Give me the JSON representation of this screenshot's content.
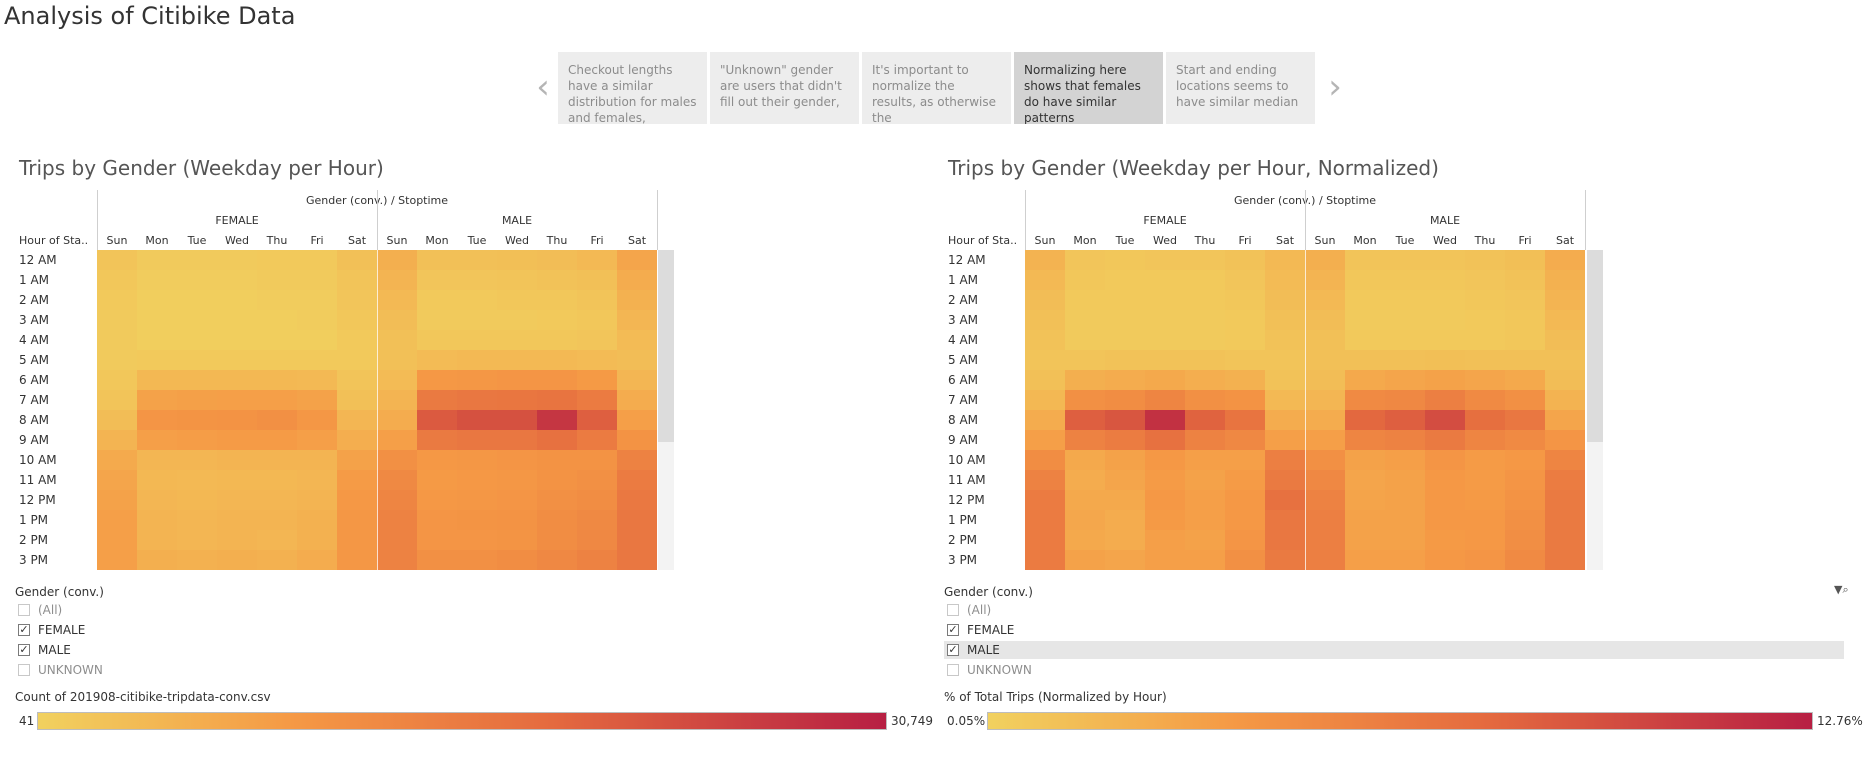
{
  "page_title": "Analysis of Citibike Data",
  "story": {
    "points": [
      {
        "text": "Checkout lengths have a similar distribution for males and females,",
        "active": false
      },
      {
        "text": "\"Unknown\" gender are users that didn't fill out their gender,",
        "active": false
      },
      {
        "text": "It's important to normalize the results, as otherwise the",
        "active": false
      },
      {
        "text": "Normalizing here shows that females do have similar patterns",
        "active": true
      },
      {
        "text": "Start and ending locations seems to have similar median",
        "active": false
      }
    ]
  },
  "views": [
    {
      "title": "Trips by Gender (Weekday per Hour)",
      "header_path": "Gender (conv.) / Stoptime",
      "row_header": "Hour of Sta..",
      "genders": [
        "FEMALE",
        "MALE"
      ],
      "days": [
        "Sun",
        "Mon",
        "Tue",
        "Wed",
        "Thu",
        "Fri",
        "Sat"
      ],
      "hours": [
        "12 AM",
        "1 AM",
        "2 AM",
        "3 AM",
        "4 AM",
        "5 AM",
        "6 AM",
        "7 AM",
        "8 AM",
        "9 AM",
        "10 AM",
        "11 AM",
        "12 PM",
        "1 PM",
        "2 PM",
        "3 PM"
      ],
      "matrix_female": [
        [
          0.08,
          0.04,
          0.04,
          0.04,
          0.05,
          0.05,
          0.1
        ],
        [
          0.06,
          0.03,
          0.03,
          0.03,
          0.04,
          0.04,
          0.08
        ],
        [
          0.05,
          0.02,
          0.02,
          0.02,
          0.03,
          0.03,
          0.07
        ],
        [
          0.04,
          0.02,
          0.02,
          0.02,
          0.02,
          0.03,
          0.06
        ],
        [
          0.04,
          0.02,
          0.02,
          0.02,
          0.02,
          0.02,
          0.05
        ],
        [
          0.04,
          0.05,
          0.05,
          0.05,
          0.05,
          0.05,
          0.05
        ],
        [
          0.06,
          0.15,
          0.15,
          0.15,
          0.15,
          0.14,
          0.08
        ],
        [
          0.08,
          0.28,
          0.29,
          0.3,
          0.3,
          0.28,
          0.1
        ],
        [
          0.12,
          0.36,
          0.37,
          0.38,
          0.4,
          0.35,
          0.16
        ],
        [
          0.17,
          0.3,
          0.31,
          0.32,
          0.32,
          0.3,
          0.21
        ],
        [
          0.23,
          0.16,
          0.16,
          0.17,
          0.17,
          0.17,
          0.28
        ],
        [
          0.26,
          0.15,
          0.14,
          0.15,
          0.15,
          0.16,
          0.32
        ],
        [
          0.28,
          0.16,
          0.15,
          0.16,
          0.16,
          0.17,
          0.34
        ],
        [
          0.3,
          0.17,
          0.16,
          0.17,
          0.17,
          0.19,
          0.35
        ],
        [
          0.3,
          0.17,
          0.16,
          0.17,
          0.16,
          0.19,
          0.35
        ],
        [
          0.3,
          0.2,
          0.19,
          0.2,
          0.19,
          0.22,
          0.35
        ]
      ],
      "matrix_male": [
        [
          0.2,
          0.1,
          0.1,
          0.11,
          0.12,
          0.14,
          0.26
        ],
        [
          0.17,
          0.07,
          0.07,
          0.08,
          0.09,
          0.1,
          0.22
        ],
        [
          0.14,
          0.05,
          0.05,
          0.06,
          0.06,
          0.08,
          0.19
        ],
        [
          0.12,
          0.04,
          0.04,
          0.04,
          0.05,
          0.06,
          0.16
        ],
        [
          0.1,
          0.06,
          0.06,
          0.06,
          0.06,
          0.07,
          0.13
        ],
        [
          0.1,
          0.13,
          0.14,
          0.14,
          0.14,
          0.13,
          0.12
        ],
        [
          0.13,
          0.34,
          0.35,
          0.36,
          0.36,
          0.33,
          0.16
        ],
        [
          0.17,
          0.56,
          0.58,
          0.59,
          0.6,
          0.55,
          0.22
        ],
        [
          0.22,
          0.74,
          0.78,
          0.78,
          0.9,
          0.72,
          0.3
        ],
        [
          0.3,
          0.56,
          0.58,
          0.58,
          0.62,
          0.55,
          0.38
        ],
        [
          0.4,
          0.34,
          0.35,
          0.36,
          0.38,
          0.38,
          0.5
        ],
        [
          0.45,
          0.33,
          0.34,
          0.35,
          0.38,
          0.4,
          0.55
        ],
        [
          0.48,
          0.34,
          0.35,
          0.36,
          0.4,
          0.42,
          0.57
        ],
        [
          0.5,
          0.36,
          0.37,
          0.38,
          0.42,
          0.45,
          0.58
        ],
        [
          0.5,
          0.36,
          0.36,
          0.37,
          0.42,
          0.46,
          0.58
        ],
        [
          0.5,
          0.4,
          0.4,
          0.42,
          0.46,
          0.5,
          0.58
        ]
      ],
      "filter": {
        "title": "Gender (conv.)",
        "items": [
          {
            "label": "(All)",
            "checked": false
          },
          {
            "label": "FEMALE",
            "checked": true
          },
          {
            "label": "MALE",
            "checked": true
          },
          {
            "label": "UNKNOWN",
            "checked": false
          }
        ],
        "highlight": -1
      },
      "legend": {
        "title": "Count of 201908-citibike-tripdata-conv.csv",
        "min": "41",
        "max": "30,749"
      }
    },
    {
      "title": "Trips by Gender (Weekday per Hour, Normalized)",
      "header_path": "Gender (conv.) / Stoptime",
      "row_header": "Hour of Sta..",
      "genders": [
        "FEMALE",
        "MALE"
      ],
      "days": [
        "Sun",
        "Mon",
        "Tue",
        "Wed",
        "Thu",
        "Fri",
        "Sat"
      ],
      "hours": [
        "12 AM",
        "1 AM",
        "2 AM",
        "3 AM",
        "4 AM",
        "5 AM",
        "6 AM",
        "7 AM",
        "8 AM",
        "9 AM",
        "10 AM",
        "11 AM",
        "12 PM",
        "1 PM",
        "2 PM",
        "3 PM"
      ],
      "matrix_female": [
        [
          0.18,
          0.07,
          0.06,
          0.07,
          0.07,
          0.09,
          0.14
        ],
        [
          0.14,
          0.06,
          0.05,
          0.05,
          0.05,
          0.07,
          0.13
        ],
        [
          0.12,
          0.05,
          0.05,
          0.05,
          0.05,
          0.06,
          0.12
        ],
        [
          0.1,
          0.04,
          0.04,
          0.04,
          0.04,
          0.05,
          0.1
        ],
        [
          0.09,
          0.04,
          0.04,
          0.04,
          0.04,
          0.05,
          0.09
        ],
        [
          0.08,
          0.08,
          0.09,
          0.09,
          0.09,
          0.08,
          0.08
        ],
        [
          0.1,
          0.2,
          0.22,
          0.24,
          0.21,
          0.19,
          0.09
        ],
        [
          0.15,
          0.4,
          0.42,
          0.48,
          0.4,
          0.38,
          0.14
        ],
        [
          0.22,
          0.72,
          0.76,
          0.92,
          0.7,
          0.6,
          0.22
        ],
        [
          0.3,
          0.5,
          0.54,
          0.62,
          0.5,
          0.46,
          0.3
        ],
        [
          0.42,
          0.24,
          0.28,
          0.34,
          0.3,
          0.3,
          0.52
        ],
        [
          0.5,
          0.22,
          0.26,
          0.32,
          0.28,
          0.32,
          0.56
        ],
        [
          0.55,
          0.24,
          0.24,
          0.34,
          0.3,
          0.34,
          0.62
        ],
        [
          0.55,
          0.25,
          0.22,
          0.33,
          0.3,
          0.34,
          0.58
        ],
        [
          0.55,
          0.24,
          0.22,
          0.3,
          0.28,
          0.36,
          0.58
        ],
        [
          0.55,
          0.28,
          0.26,
          0.3,
          0.3,
          0.4,
          0.56
        ]
      ],
      "matrix_male": [
        [
          0.2,
          0.08,
          0.08,
          0.08,
          0.09,
          0.11,
          0.22
        ],
        [
          0.17,
          0.06,
          0.06,
          0.06,
          0.07,
          0.09,
          0.19
        ],
        [
          0.14,
          0.05,
          0.05,
          0.05,
          0.06,
          0.07,
          0.17
        ],
        [
          0.12,
          0.04,
          0.04,
          0.04,
          0.05,
          0.06,
          0.14
        ],
        [
          0.1,
          0.05,
          0.05,
          0.05,
          0.05,
          0.06,
          0.12
        ],
        [
          0.1,
          0.1,
          0.1,
          0.11,
          0.1,
          0.1,
          0.1
        ],
        [
          0.12,
          0.24,
          0.26,
          0.28,
          0.26,
          0.24,
          0.12
        ],
        [
          0.16,
          0.44,
          0.46,
          0.52,
          0.44,
          0.4,
          0.18
        ],
        [
          0.22,
          0.68,
          0.72,
          0.8,
          0.64,
          0.58,
          0.26
        ],
        [
          0.3,
          0.48,
          0.5,
          0.56,
          0.48,
          0.44,
          0.36
        ],
        [
          0.4,
          0.28,
          0.3,
          0.36,
          0.32,
          0.34,
          0.48
        ],
        [
          0.46,
          0.26,
          0.28,
          0.34,
          0.32,
          0.36,
          0.54
        ],
        [
          0.5,
          0.27,
          0.28,
          0.34,
          0.33,
          0.38,
          0.56
        ],
        [
          0.52,
          0.28,
          0.28,
          0.34,
          0.34,
          0.4,
          0.56
        ],
        [
          0.52,
          0.28,
          0.28,
          0.33,
          0.34,
          0.41,
          0.56
        ],
        [
          0.52,
          0.3,
          0.3,
          0.34,
          0.36,
          0.44,
          0.56
        ]
      ],
      "filter": {
        "title": "Gender (conv.)",
        "items": [
          {
            "label": "(All)",
            "checked": false
          },
          {
            "label": "FEMALE",
            "checked": true
          },
          {
            "label": "MALE",
            "checked": true
          },
          {
            "label": "UNKNOWN",
            "checked": false
          }
        ],
        "highlight": 2
      },
      "legend": {
        "title": "% of Total Trips (Normalized by Hour)",
        "min": "0.05%",
        "max": "12.76%"
      }
    }
  ],
  "colors": {
    "ramp": [
      "#f1d15f",
      "#f59945",
      "#e56b3f",
      "#b71f43"
    ]
  }
}
